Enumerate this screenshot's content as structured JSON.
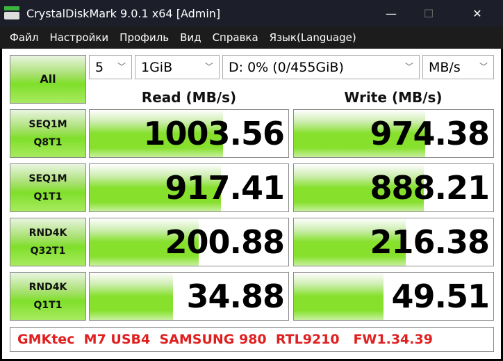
{
  "window": {
    "title": "CrystalDiskMark 9.0.1 x64 [Admin]",
    "minimize": "—",
    "maximize": "☐",
    "close": "✕"
  },
  "menu": [
    "Файл",
    "Настройки",
    "Профиль",
    "Вид",
    "Справка",
    "Язык(Language)"
  ],
  "controls": {
    "all_label": "All",
    "count": "5",
    "size": "1GiB",
    "drive": "D: 0% (0/455GiB)",
    "unit": "MB/s"
  },
  "headers": {
    "read": "Read (MB/s)",
    "write": "Write (MB/s)"
  },
  "rows": [
    {
      "l1": "SEQ1M",
      "l2": "Q8T1",
      "read": "1003.56",
      "write": "974.38",
      "read_fill": 0.67,
      "write_fill": 0.66
    },
    {
      "l1": "SEQ1M",
      "l2": "Q1T1",
      "read": "917.41",
      "write": "888.21",
      "read_fill": 0.66,
      "write_fill": 0.65
    },
    {
      "l1": "RND4K",
      "l2": "Q32T1",
      "read": "200.88",
      "write": "216.38",
      "read_fill": 0.55,
      "write_fill": 0.56
    },
    {
      "l1": "RND4K",
      "l2": "Q1T1",
      "read": "34.88",
      "write": "49.51",
      "read_fill": 0.42,
      "write_fill": 0.45
    }
  ],
  "comment": "GMKtec  M7 USB4  SAMSUNG 980  RTL9210   FW1.34.39",
  "colors": {
    "bar": "#86e02c",
    "comment": "#e02020",
    "titlebar": "#1c1f2a"
  }
}
